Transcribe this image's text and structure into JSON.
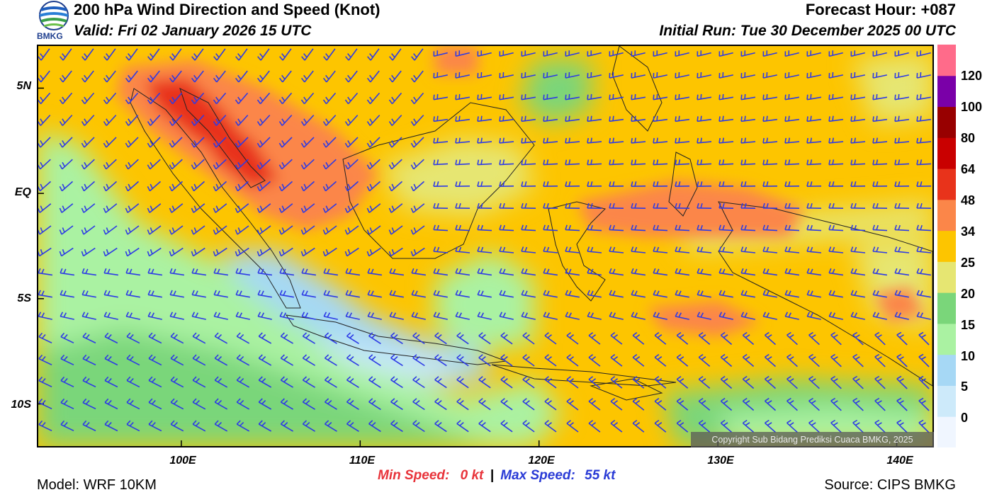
{
  "header": {
    "title": "200 hPa Wind Direction and Speed (Knot)",
    "valid": "Valid: Fri 02 January 2026 15 UTC",
    "forecast_hour": "Forecast Hour: +087",
    "initial_run": "Initial Run: Tue 30 December 2025 00 UTC"
  },
  "logo": {
    "text": "BMKG",
    "icon": "bmkg-globe-logo"
  },
  "map": {
    "lon_range": [
      92,
      142
    ],
    "lat_range": [
      -12,
      7
    ],
    "lat_labels": [
      {
        "lat": 5,
        "label": "5N"
      },
      {
        "lat": 0,
        "label": "EQ"
      },
      {
        "lat": -5,
        "label": "5S"
      },
      {
        "lat": -10,
        "label": "10S"
      }
    ],
    "lon_labels": [
      {
        "lon": 100,
        "label": "100E"
      },
      {
        "lon": 110,
        "label": "110E"
      },
      {
        "lon": 120,
        "label": "120E"
      },
      {
        "lon": 130,
        "label": "130E"
      },
      {
        "lon": 140,
        "label": "140E"
      }
    ],
    "copyright": "Copyright Sub Bidang Prediksi Cuaca BMKG, 2025"
  },
  "colorbar": {
    "levels": [
      "0",
      "5",
      "10",
      "15",
      "20",
      "25",
      "34",
      "48",
      "64",
      "80",
      "100",
      "120"
    ],
    "colors": [
      "#f0f6ff",
      "#cdeafa",
      "#a6d8f5",
      "#aaf2a2",
      "#7ad67a",
      "#e6e672",
      "#fdc500",
      "#fb8649",
      "#e8331b",
      "#c90000",
      "#980000",
      "#7a00a8",
      "#ff6b8a"
    ]
  },
  "stats": {
    "min_label": "Min Speed:",
    "min_value": "0 kt",
    "separator": "|",
    "max_label": "Max Speed:",
    "max_value": "55 kt"
  },
  "footer": {
    "model": "Model: WRF 10KM",
    "source": "Source: CIPS BMKG"
  }
}
